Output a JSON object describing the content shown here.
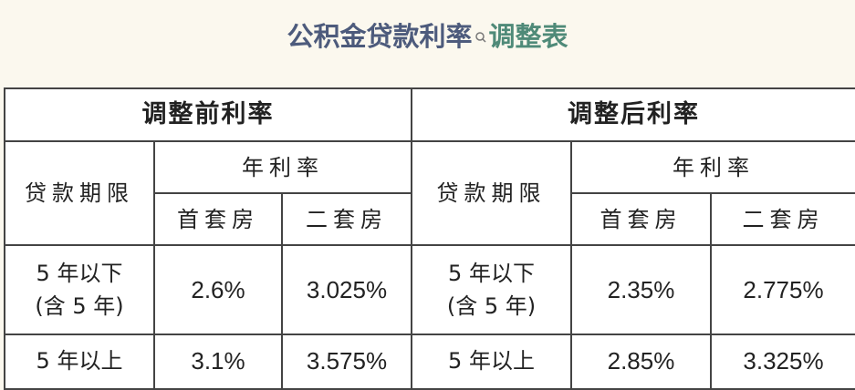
{
  "title": {
    "main": "公积金贷款利率",
    "link": "调整表",
    "icon": "search-icon",
    "main_color": "#4d5b7c",
    "link_color": "#4f8a78"
  },
  "table": {
    "before": {
      "header": "调整前利率",
      "term_label": "贷款期限",
      "annual_rate": "年利率",
      "first_home": "首套房",
      "second_home": "二套房",
      "rows": [
        {
          "term": "5 年以下",
          "term_note": "(含 5 年)",
          "first": "2.6%",
          "second": "3.025%"
        },
        {
          "term": "5 年以上",
          "first": "3.1%",
          "second": "3.575%"
        }
      ]
    },
    "after": {
      "header": "调整后利率",
      "term_label": "贷款期限",
      "annual_rate": "年利率",
      "first_home": "首套房",
      "second_home": "二套房",
      "rows": [
        {
          "term": "5 年以下",
          "term_note": "(含 5 年)",
          "first": "2.35%",
          "second": "2.775%"
        },
        {
          "term": "5 年以上",
          "first": "2.85%",
          "second": "3.325%"
        }
      ]
    }
  }
}
